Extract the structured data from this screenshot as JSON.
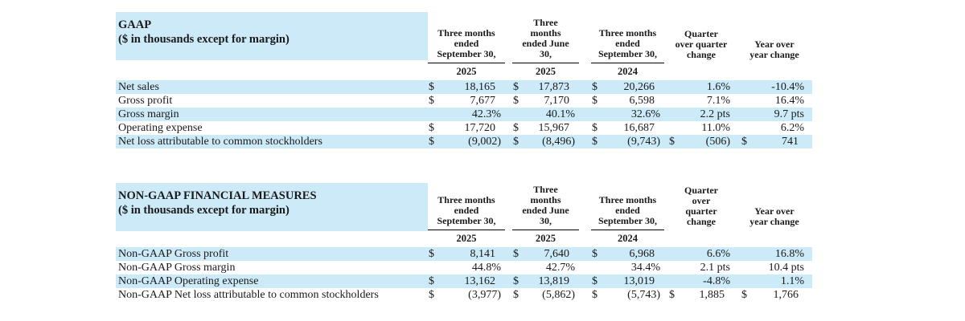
{
  "page": {
    "colors": {
      "row_highlight": "#cdeaf9",
      "text": "#1a1a1a",
      "background": "#ffffff"
    }
  },
  "tables": [
    {
      "title": "GAAP",
      "subtitle": "($ in thousands except for margin)",
      "columns": [
        {
          "header": "Three months\nended\nSeptember 30,",
          "year": "2025"
        },
        {
          "header": "Three\nmonths\nended June\n30,",
          "year": "2025"
        },
        {
          "header": "Three months\nended\nSeptember 30,",
          "year": "2024"
        },
        {
          "header": "Quarter\nover quarter\nchange"
        },
        {
          "header": "Year over\nyear change"
        }
      ],
      "rows": [
        {
          "label": "Net sales",
          "highlight": true,
          "cells": [
            {
              "cur": "$",
              "val": "18,165"
            },
            {
              "cur": "$",
              "val": "17,873"
            },
            {
              "cur": "$",
              "val": "20,266"
            },
            {
              "cur": "",
              "val": "1.6%"
            },
            {
              "cur": "",
              "val": "-10.4%"
            }
          ]
        },
        {
          "label": "Gross profit",
          "highlight": false,
          "cells": [
            {
              "cur": "$",
              "val": "7,677"
            },
            {
              "cur": "$",
              "val": "7,170"
            },
            {
              "cur": "$",
              "val": "6,598"
            },
            {
              "cur": "",
              "val": "7.1%"
            },
            {
              "cur": "",
              "val": "16.4%"
            }
          ]
        },
        {
          "label": "Gross margin",
          "highlight": true,
          "cells": [
            {
              "cur": "",
              "val": "42.3%"
            },
            {
              "cur": "",
              "val": "40.1%"
            },
            {
              "cur": "",
              "val": "32.6%"
            },
            {
              "cur": "",
              "val": "2.2 pts"
            },
            {
              "cur": "",
              "val": "9.7 pts"
            }
          ]
        },
        {
          "label": "Operating expense",
          "highlight": false,
          "cells": [
            {
              "cur": "$",
              "val": "17,720"
            },
            {
              "cur": "$",
              "val": "15,967"
            },
            {
              "cur": "$",
              "val": "16,687"
            },
            {
              "cur": "",
              "val": "11.0%"
            },
            {
              "cur": "",
              "val": "6.2%"
            }
          ]
        },
        {
          "label": "Net loss attributable to common stockholders",
          "highlight": true,
          "cells": [
            {
              "cur": "$",
              "val": "(9,002)"
            },
            {
              "cur": "$",
              "val": "(8,496)"
            },
            {
              "cur": "$",
              "val": "(9,743)"
            },
            {
              "cur": "$",
              "val": "(506)"
            },
            {
              "cur": "$",
              "val": "741"
            }
          ]
        }
      ]
    },
    {
      "title": "NON-GAAP FINANCIAL MEASURES",
      "subtitle": "($ in thousands except for margin)",
      "columns": [
        {
          "header": "Three months\nended\nSeptember 30,",
          "year": "2025"
        },
        {
          "header": "Three\nmonths\nended June\n30,",
          "year": "2025"
        },
        {
          "header": "Three months\nended\nSeptember 30,",
          "year": "2024"
        },
        {
          "header": "Quarter\nover\nquarter\nchange"
        },
        {
          "header": "Year over\nyear change"
        }
      ],
      "rows": [
        {
          "label": "Non-GAAP Gross profit",
          "highlight": true,
          "cells": [
            {
              "cur": "$",
              "val": "8,141"
            },
            {
              "cur": "$",
              "val": "7,640"
            },
            {
              "cur": "$",
              "val": "6,968"
            },
            {
              "cur": "",
              "val": "6.6%"
            },
            {
              "cur": "",
              "val": "16.8%"
            }
          ]
        },
        {
          "label": "Non-GAAP Gross margin",
          "highlight": false,
          "cells": [
            {
              "cur": "",
              "val": "44.8%"
            },
            {
              "cur": "",
              "val": "42.7%"
            },
            {
              "cur": "",
              "val": "34.4%"
            },
            {
              "cur": "",
              "val": "2.1 pts"
            },
            {
              "cur": "",
              "val": "10.4 pts"
            }
          ]
        },
        {
          "label": "Non-GAAP Operating expense",
          "highlight": true,
          "cells": [
            {
              "cur": "$",
              "val": "13,162"
            },
            {
              "cur": "$",
              "val": "13,819"
            },
            {
              "cur": "$",
              "val": "13,019"
            },
            {
              "cur": "",
              "val": "-4.8%"
            },
            {
              "cur": "",
              "val": "1.1%"
            }
          ]
        },
        {
          "label": "Non-GAAP Net loss attributable to common stockholders",
          "highlight": false,
          "cells": [
            {
              "cur": "$",
              "val": "(3,977)"
            },
            {
              "cur": "$",
              "val": "(5,862)"
            },
            {
              "cur": "$",
              "val": "(5,743)"
            },
            {
              "cur": "$",
              "val": "1,885"
            },
            {
              "cur": "$",
              "val": "1,766"
            }
          ]
        }
      ]
    }
  ]
}
